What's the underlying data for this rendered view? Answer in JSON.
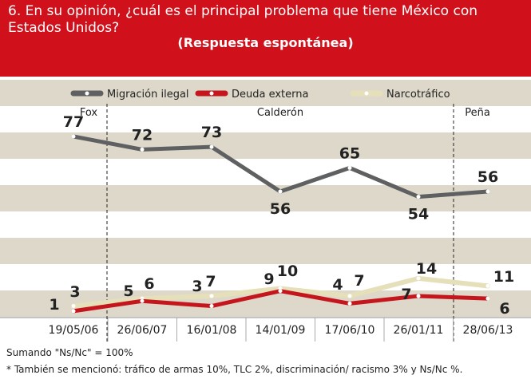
{
  "title": "6. En su opinión, ¿cuál es el principal problema que tiene México con Estados Unidos?",
  "subtitle": "(Respuesta espontánea)",
  "colors": {
    "header": "#d0111b",
    "band": "#ddd8ca",
    "migracion": "#5f6062",
    "deuda": "#c4161c",
    "narco": "#e5e0b9"
  },
  "legend": [
    {
      "label": "Migración ilegal",
      "color": "#5f6062"
    },
    {
      "label": "Deuda externa",
      "color": "#c4161c"
    },
    {
      "label": "Narcotráfico",
      "color": "#e5e0b9"
    }
  ],
  "periods": [
    {
      "label": "Fox"
    },
    {
      "label": "Calderón"
    },
    {
      "label": "Peña"
    }
  ],
  "chart_data": {
    "type": "line",
    "categories": [
      "19/05/06",
      "26/06/07",
      "16/01/08",
      "14/01/09",
      "17/06/10",
      "26/01/11",
      "28/06/13"
    ],
    "series": [
      {
        "name": "Migración ilegal",
        "values": [
          77,
          72,
          73,
          56,
          65,
          54,
          56
        ]
      },
      {
        "name": "Deuda externa",
        "values": [
          1,
          5,
          3,
          9,
          4,
          7,
          6
        ]
      },
      {
        "name": "Narcotráfico",
        "values": [
          3,
          6,
          7,
          10,
          7,
          14,
          11
        ]
      }
    ],
    "ylim": [
      0,
      90
    ],
    "grid": "horizontal bands",
    "legend_position": "top"
  },
  "footnotes": {
    "sum": "Sumando \"Ns/Nc\" = 100%",
    "also": "* También se mencionó: tráfico de armas 10%, TLC 2%, discriminación/ racismo 3% y Ns/Nc %."
  }
}
